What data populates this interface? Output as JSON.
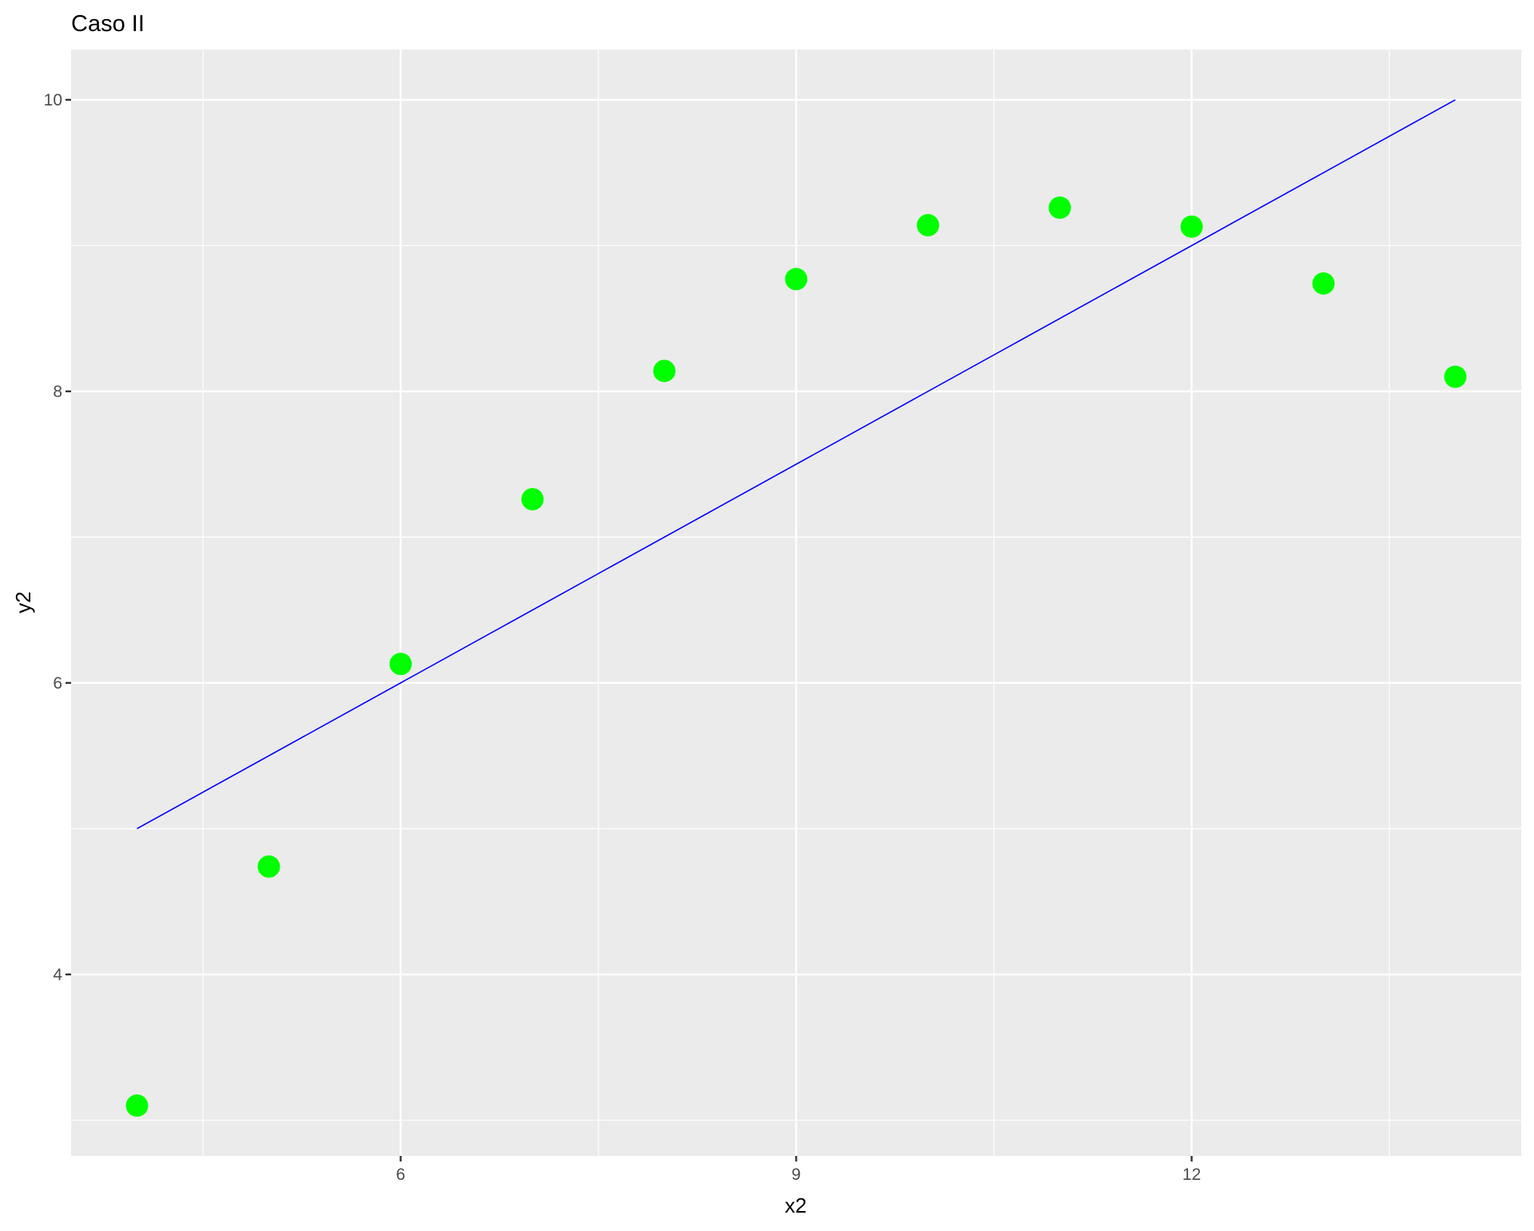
{
  "chart_data": {
    "type": "scatter",
    "title": "Caso II",
    "xlabel": "x2",
    "ylabel": "y2",
    "xlim": [
      3.5,
      14.5
    ],
    "ylim": [
      2.755,
      10.345
    ],
    "x_ticks": [
      6,
      9,
      12
    ],
    "y_ticks": [
      4,
      6,
      8,
      10
    ],
    "x_tick_labels": [
      "6",
      "9",
      "12"
    ],
    "y_tick_labels": [
      "4",
      "6",
      "8",
      "10"
    ],
    "grid": true,
    "points": {
      "color": "#00FF00",
      "x": [
        4,
        5,
        6,
        7,
        8,
        9,
        10,
        11,
        12,
        13,
        14
      ],
      "y": [
        3.1,
        4.74,
        6.13,
        7.26,
        8.14,
        8.77,
        9.14,
        9.26,
        9.13,
        8.74,
        8.1
      ]
    },
    "line": {
      "color": "#0000FF",
      "x": [
        4,
        14
      ],
      "y": [
        5,
        10
      ]
    },
    "panel_background": "#EBEBEB"
  }
}
